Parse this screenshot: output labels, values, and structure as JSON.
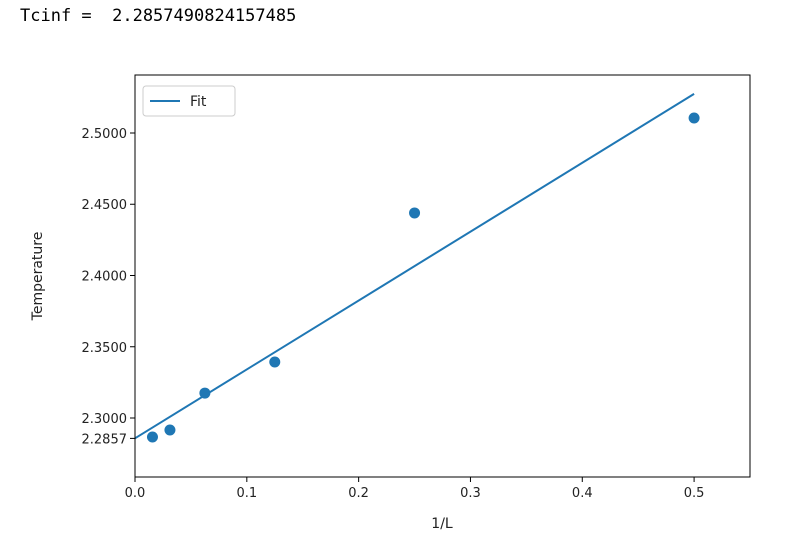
{
  "output_text": "Tcinf =  2.2857490824157485",
  "chart_data": {
    "type": "scatter",
    "title": "",
    "xlabel": "1/L",
    "ylabel": "Temperature",
    "xlim": [
      0,
      0.55
    ],
    "ylim": [
      2.2586,
      2.5407
    ],
    "xticks": [
      "0.0",
      "0.1",
      "0.2",
      "0.3",
      "0.4",
      "0.5"
    ],
    "xtick_values": [
      0,
      0.1,
      0.2,
      0.3,
      0.4,
      0.5
    ],
    "yticks": [
      "2.2857",
      "2.3000",
      "2.3500",
      "2.4000",
      "2.4500",
      "2.5000"
    ],
    "ytick_values": [
      2.2857,
      2.3,
      2.35,
      2.4,
      2.45,
      2.5
    ],
    "grid": false,
    "legend_position": "top-left",
    "points": {
      "x": [
        0.015625,
        0.03125,
        0.0625,
        0.125,
        0.25,
        0.5
      ],
      "y": [
        2.2867,
        2.2916,
        2.3175,
        2.3393,
        2.4439,
        2.5105
      ],
      "color": "#1f77b4"
    },
    "fit": {
      "name": "Fit",
      "intercept": 2.2857490824157485,
      "slope": 0.4834,
      "x_range": [
        0,
        0.5
      ],
      "color": "#1f77b4"
    }
  }
}
